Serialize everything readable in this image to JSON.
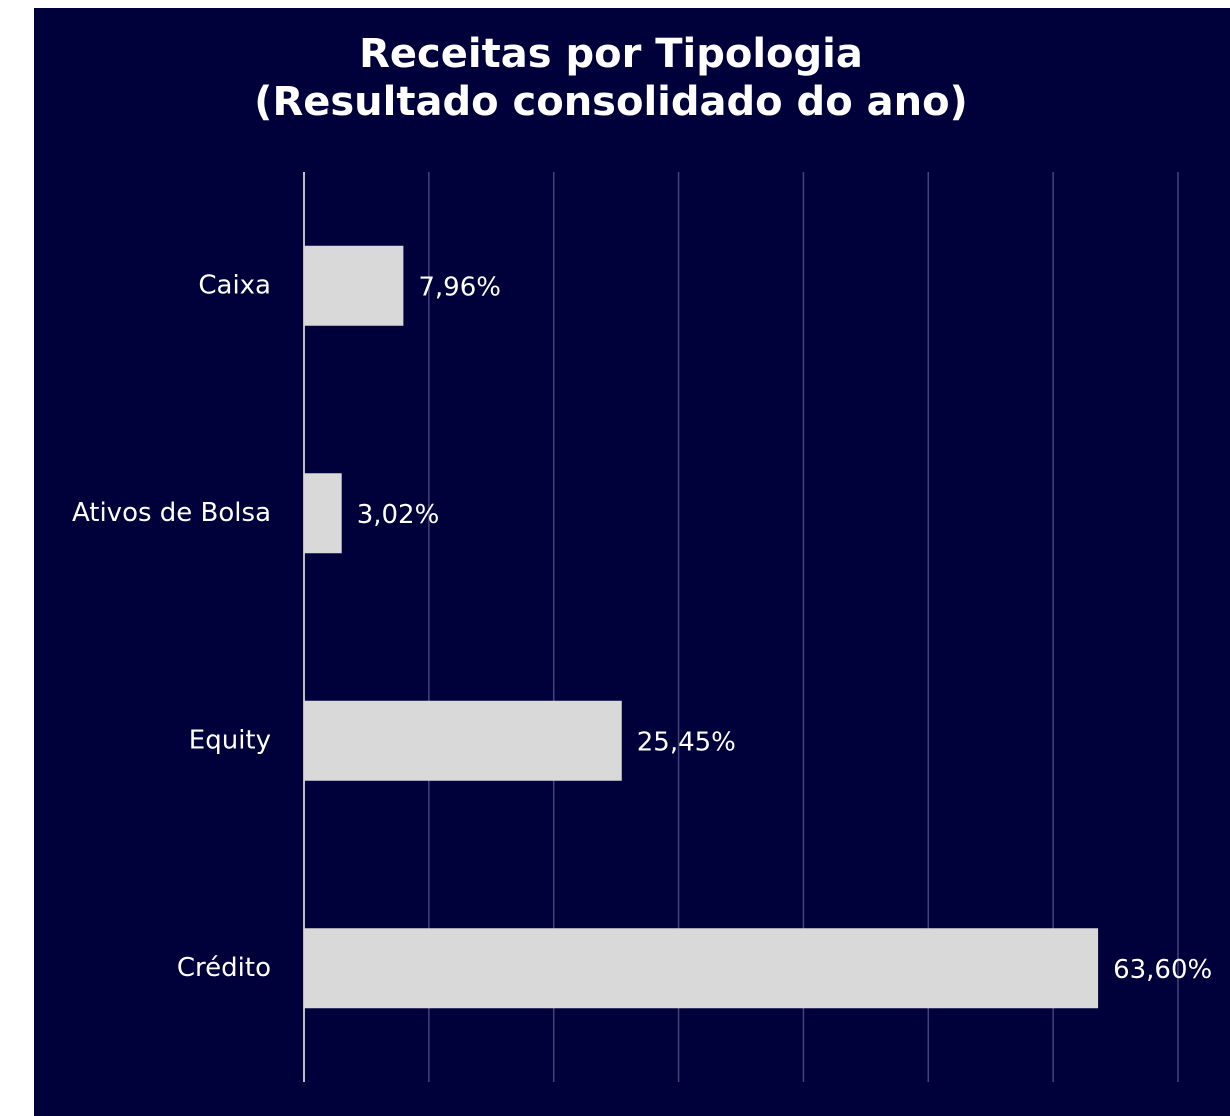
{
  "chart_data": {
    "type": "barh",
    "title": "Receitas por Tipologia\n(Resultado consolidado do ano)",
    "categories": [
      "Caixa",
      "Ativos de Bolsa",
      "Equity",
      "Crédito"
    ],
    "values": [
      7.96,
      3.02,
      25.45,
      63.6
    ],
    "value_labels": [
      "7,96%",
      "3,02%",
      "25,45%",
      "63,60%"
    ],
    "color": "#d9d9d9",
    "xlim": [
      0,
      70
    ],
    "xticks": [
      0,
      10,
      20,
      30,
      40,
      50,
      60,
      70
    ],
    "grid": true,
    "show_tick_labels": false
  }
}
